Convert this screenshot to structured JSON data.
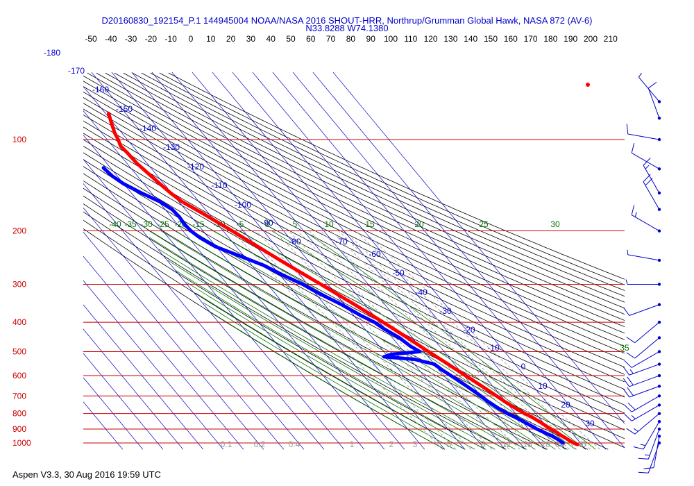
{
  "header": {
    "title": "D20160830_192154_P.1 144945004 NOAA/NASA 2016 SHOUT-HRR, Northrup/Grumman Global Hawk, NASA 872 (AV-6)",
    "location": "N33.8288 W74.1380"
  },
  "footer": {
    "text": "Aspen V3.3, 30 Aug 2016  19:59 UTC"
  },
  "colors": {
    "temperature": "#ff0000",
    "dewpoint": "#0000ff",
    "isobar": "#cc0000",
    "isotherm": "#0000cc",
    "dry_adiabat": "#000000",
    "moist_adiabat": "#007700",
    "mixing_ratio": "#999999",
    "wind_barb": "#0000cc"
  },
  "chart_data": {
    "type": "skew-t log-p",
    "pressure_levels": [
      100,
      200,
      300,
      400,
      500,
      600,
      700,
      800,
      900,
      1000
    ],
    "pressure_labels": [
      "100",
      "200",
      "300",
      "400",
      "500",
      "600",
      "700",
      "800",
      "900",
      "1000"
    ],
    "ylim": [
      1000,
      70
    ],
    "top_temperature_ticks": [
      "-50",
      "-40",
      "-30",
      "-20",
      "-10",
      "0",
      "10",
      "20",
      "30",
      "40",
      "50",
      "60",
      "70",
      "80",
      "90",
      "100",
      "110",
      "120",
      "130",
      "140",
      "150",
      "160",
      "170",
      "180",
      "190",
      "200",
      "210"
    ],
    "isotherm_label_values": [
      "-180",
      "-170",
      "-160",
      "-150",
      "-140",
      "-130",
      "-120",
      "-110",
      "-100",
      "-90",
      "-80",
      "-70",
      "-60",
      "-50",
      "-40",
      "-30",
      "-20",
      "-10",
      "0",
      "10",
      "20",
      "30"
    ],
    "moist_adiabat_labels": [
      "-40",
      "-35",
      "-30",
      "-25",
      "-20",
      "-15",
      "-10",
      "-5",
      "0",
      "5",
      "10",
      "15",
      "20",
      "25",
      "30",
      "35"
    ],
    "mixing_ratio_labels": [
      "0.1",
      "0.2",
      "0.4",
      "1",
      "2",
      "3",
      "5",
      "8",
      "12",
      "16",
      "20",
      "30",
      "40"
    ],
    "series": [
      {
        "name": "temperature",
        "points": [
          {
            "p": 1012,
            "t": 28.0
          },
          {
            "p": 1000,
            "t": 26.7
          },
          {
            "p": 975,
            "t": 25.4
          },
          {
            "p": 950,
            "t": 24.0
          },
          {
            "p": 925,
            "t": 22.8
          },
          {
            "p": 900,
            "t": 21.2
          },
          {
            "p": 875,
            "t": 19.8
          },
          {
            "p": 850,
            "t": 18.5
          },
          {
            "p": 825,
            "t": 16.8
          },
          {
            "p": 800,
            "t": 14.6
          },
          {
            "p": 775,
            "t": 12.6
          },
          {
            "p": 750,
            "t": 10.8
          },
          {
            "p": 725,
            "t": 9.2
          },
          {
            "p": 700,
            "t": 7.8
          },
          {
            "p": 650,
            "t": 4.5
          },
          {
            "p": 600,
            "t": 0.8
          },
          {
            "p": 550,
            "t": -3.2
          },
          {
            "p": 500,
            "t": -7.8
          },
          {
            "p": 450,
            "t": -12.5
          },
          {
            "p": 400,
            "t": -18.2
          },
          {
            "p": 350,
            "t": -25.0
          },
          {
            "p": 300,
            "t": -33.5
          },
          {
            "p": 250,
            "t": -43.8
          },
          {
            "p": 200,
            "t": -55.5
          },
          {
            "p": 175,
            "t": -63.0
          },
          {
            "p": 160,
            "t": -68.5
          },
          {
            "p": 150,
            "t": -70.5
          },
          {
            "p": 140,
            "t": -72.0
          },
          {
            "p": 130,
            "t": -73.5
          },
          {
            "p": 120,
            "t": -75.0
          },
          {
            "p": 110,
            "t": -75.5
          },
          {
            "p": 105,
            "t": -76.0
          },
          {
            "p": 100,
            "t": -74.5
          },
          {
            "p": 95,
            "t": -73.5
          },
          {
            "p": 88,
            "t": -71.0
          },
          {
            "p": 82,
            "t": -68.5
          }
        ]
      },
      {
        "name": "dewpoint",
        "points": [
          {
            "p": 1000,
            "t": 21.5
          },
          {
            "p": 975,
            "t": 20.5
          },
          {
            "p": 950,
            "t": 19.0
          },
          {
            "p": 925,
            "t": 16.5
          },
          {
            "p": 900,
            "t": 14.2
          },
          {
            "p": 875,
            "t": 12.5
          },
          {
            "p": 850,
            "t": 10.5
          },
          {
            "p": 825,
            "t": 8.5
          },
          {
            "p": 800,
            "t": 6.0
          },
          {
            "p": 775,
            "t": 4.0
          },
          {
            "p": 750,
            "t": 2.5
          },
          {
            "p": 725,
            "t": 1.0
          },
          {
            "p": 700,
            "t": 0.0
          },
          {
            "p": 650,
            "t": -3.0
          },
          {
            "p": 600,
            "t": -6.5
          },
          {
            "p": 575,
            "t": -8.5
          },
          {
            "p": 550,
            "t": -10.0
          },
          {
            "p": 530,
            "t": -18.0
          },
          {
            "p": 520,
            "t": -32.0
          },
          {
            "p": 510,
            "t": -27.0
          },
          {
            "p": 500,
            "t": -12.0
          },
          {
            "p": 480,
            "t": -14.5
          },
          {
            "p": 450,
            "t": -16.5
          },
          {
            "p": 420,
            "t": -20.5
          },
          {
            "p": 400,
            "t": -22.5
          },
          {
            "p": 380,
            "t": -26.5
          },
          {
            "p": 350,
            "t": -31.5
          },
          {
            "p": 320,
            "t": -38.5
          },
          {
            "p": 300,
            "t": -42.5
          },
          {
            "p": 280,
            "t": -48.5
          },
          {
            "p": 260,
            "t": -54.0
          },
          {
            "p": 240,
            "t": -63.0
          },
          {
            "p": 225,
            "t": -70.5
          },
          {
            "p": 210,
            "t": -74.5
          },
          {
            "p": 200,
            "t": -76.0
          },
          {
            "p": 190,
            "t": -76.5
          },
          {
            "p": 180,
            "t": -76.0
          },
          {
            "p": 170,
            "t": -76.5
          },
          {
            "p": 160,
            "t": -79.5
          },
          {
            "p": 150,
            "t": -85.0
          },
          {
            "p": 140,
            "t": -90.0
          },
          {
            "p": 132,
            "t": -92.5
          },
          {
            "p": 124,
            "t": -93.5
          }
        ]
      }
    ],
    "wind_barbs": [
      {
        "p": 1000,
        "dir": 200,
        "spd": 10
      },
      {
        "p": 950,
        "dir": 190,
        "spd": 10
      },
      {
        "p": 900,
        "dir": 200,
        "spd": 15
      },
      {
        "p": 850,
        "dir": 210,
        "spd": 15
      },
      {
        "p": 800,
        "dir": 230,
        "spd": 15
      },
      {
        "p": 750,
        "dir": 240,
        "spd": 15
      },
      {
        "p": 700,
        "dir": 240,
        "spd": 20
      },
      {
        "p": 650,
        "dir": 250,
        "spd": 20
      },
      {
        "p": 600,
        "dir": 250,
        "spd": 20
      },
      {
        "p": 550,
        "dir": 250,
        "spd": 15
      },
      {
        "p": 500,
        "dir": 240,
        "spd": 10
      },
      {
        "p": 450,
        "dir": 230,
        "spd": 10
      },
      {
        "p": 400,
        "dir": 230,
        "spd": 10
      },
      {
        "p": 350,
        "dir": 250,
        "spd": 10
      },
      {
        "p": 300,
        "dir": 270,
        "spd": 5
      },
      {
        "p": 250,
        "dir": 280,
        "spd": 5
      },
      {
        "p": 200,
        "dir": 300,
        "spd": 15
      },
      {
        "p": 170,
        "dir": 330,
        "spd": 20
      },
      {
        "p": 150,
        "dir": 330,
        "spd": 15
      },
      {
        "p": 125,
        "dir": 300,
        "spd": 10
      },
      {
        "p": 100,
        "dir": 280,
        "spd": 10
      },
      {
        "p": 85,
        "dir": 340,
        "spd": 10
      },
      {
        "p": 75,
        "dir": 320,
        "spd": 5
      }
    ],
    "marker": {
      "p": 74,
      "t": 200
    }
  }
}
